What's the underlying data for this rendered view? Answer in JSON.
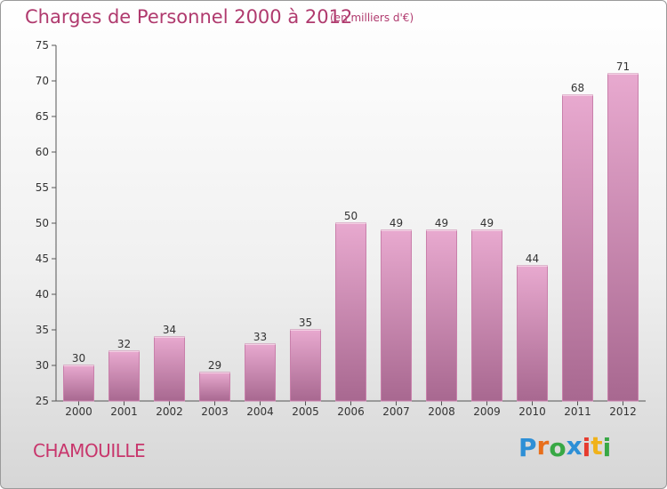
{
  "title": "Charges de Personnel 2000 à 2012",
  "unit_note": "(en milliers d'€)",
  "commune": "CHAMOUILLE",
  "logo": {
    "letters": [
      "P",
      "r",
      "o",
      "x",
      "i",
      "t",
      "i"
    ],
    "colors": [
      "#2d8fd6",
      "#e86f1b",
      "#38a845",
      "#2d8fd6",
      "#e63b2e",
      "#f0b21a",
      "#38a845"
    ]
  },
  "colors": {
    "bar_top": "#e8a9cf",
    "bar_bottom": "#a86890",
    "bar_edge": "#c980ab",
    "title": "#b03a6e",
    "axis": "#555555"
  },
  "chart_data": {
    "type": "bar",
    "title": "Charges de Personnel 2000 à 2012",
    "categories": [
      "2000",
      "2001",
      "2002",
      "2003",
      "2004",
      "2005",
      "2006",
      "2007",
      "2008",
      "2009",
      "2010",
      "2011",
      "2012"
    ],
    "values": [
      30,
      32,
      34,
      29,
      33,
      35,
      50,
      49,
      49,
      49,
      44,
      68,
      71
    ],
    "ylim": [
      25,
      75
    ],
    "yticks": [
      25,
      30,
      35,
      40,
      45,
      50,
      55,
      60,
      65,
      70,
      75
    ],
    "grid": false,
    "xlabel": "",
    "ylabel": ""
  }
}
